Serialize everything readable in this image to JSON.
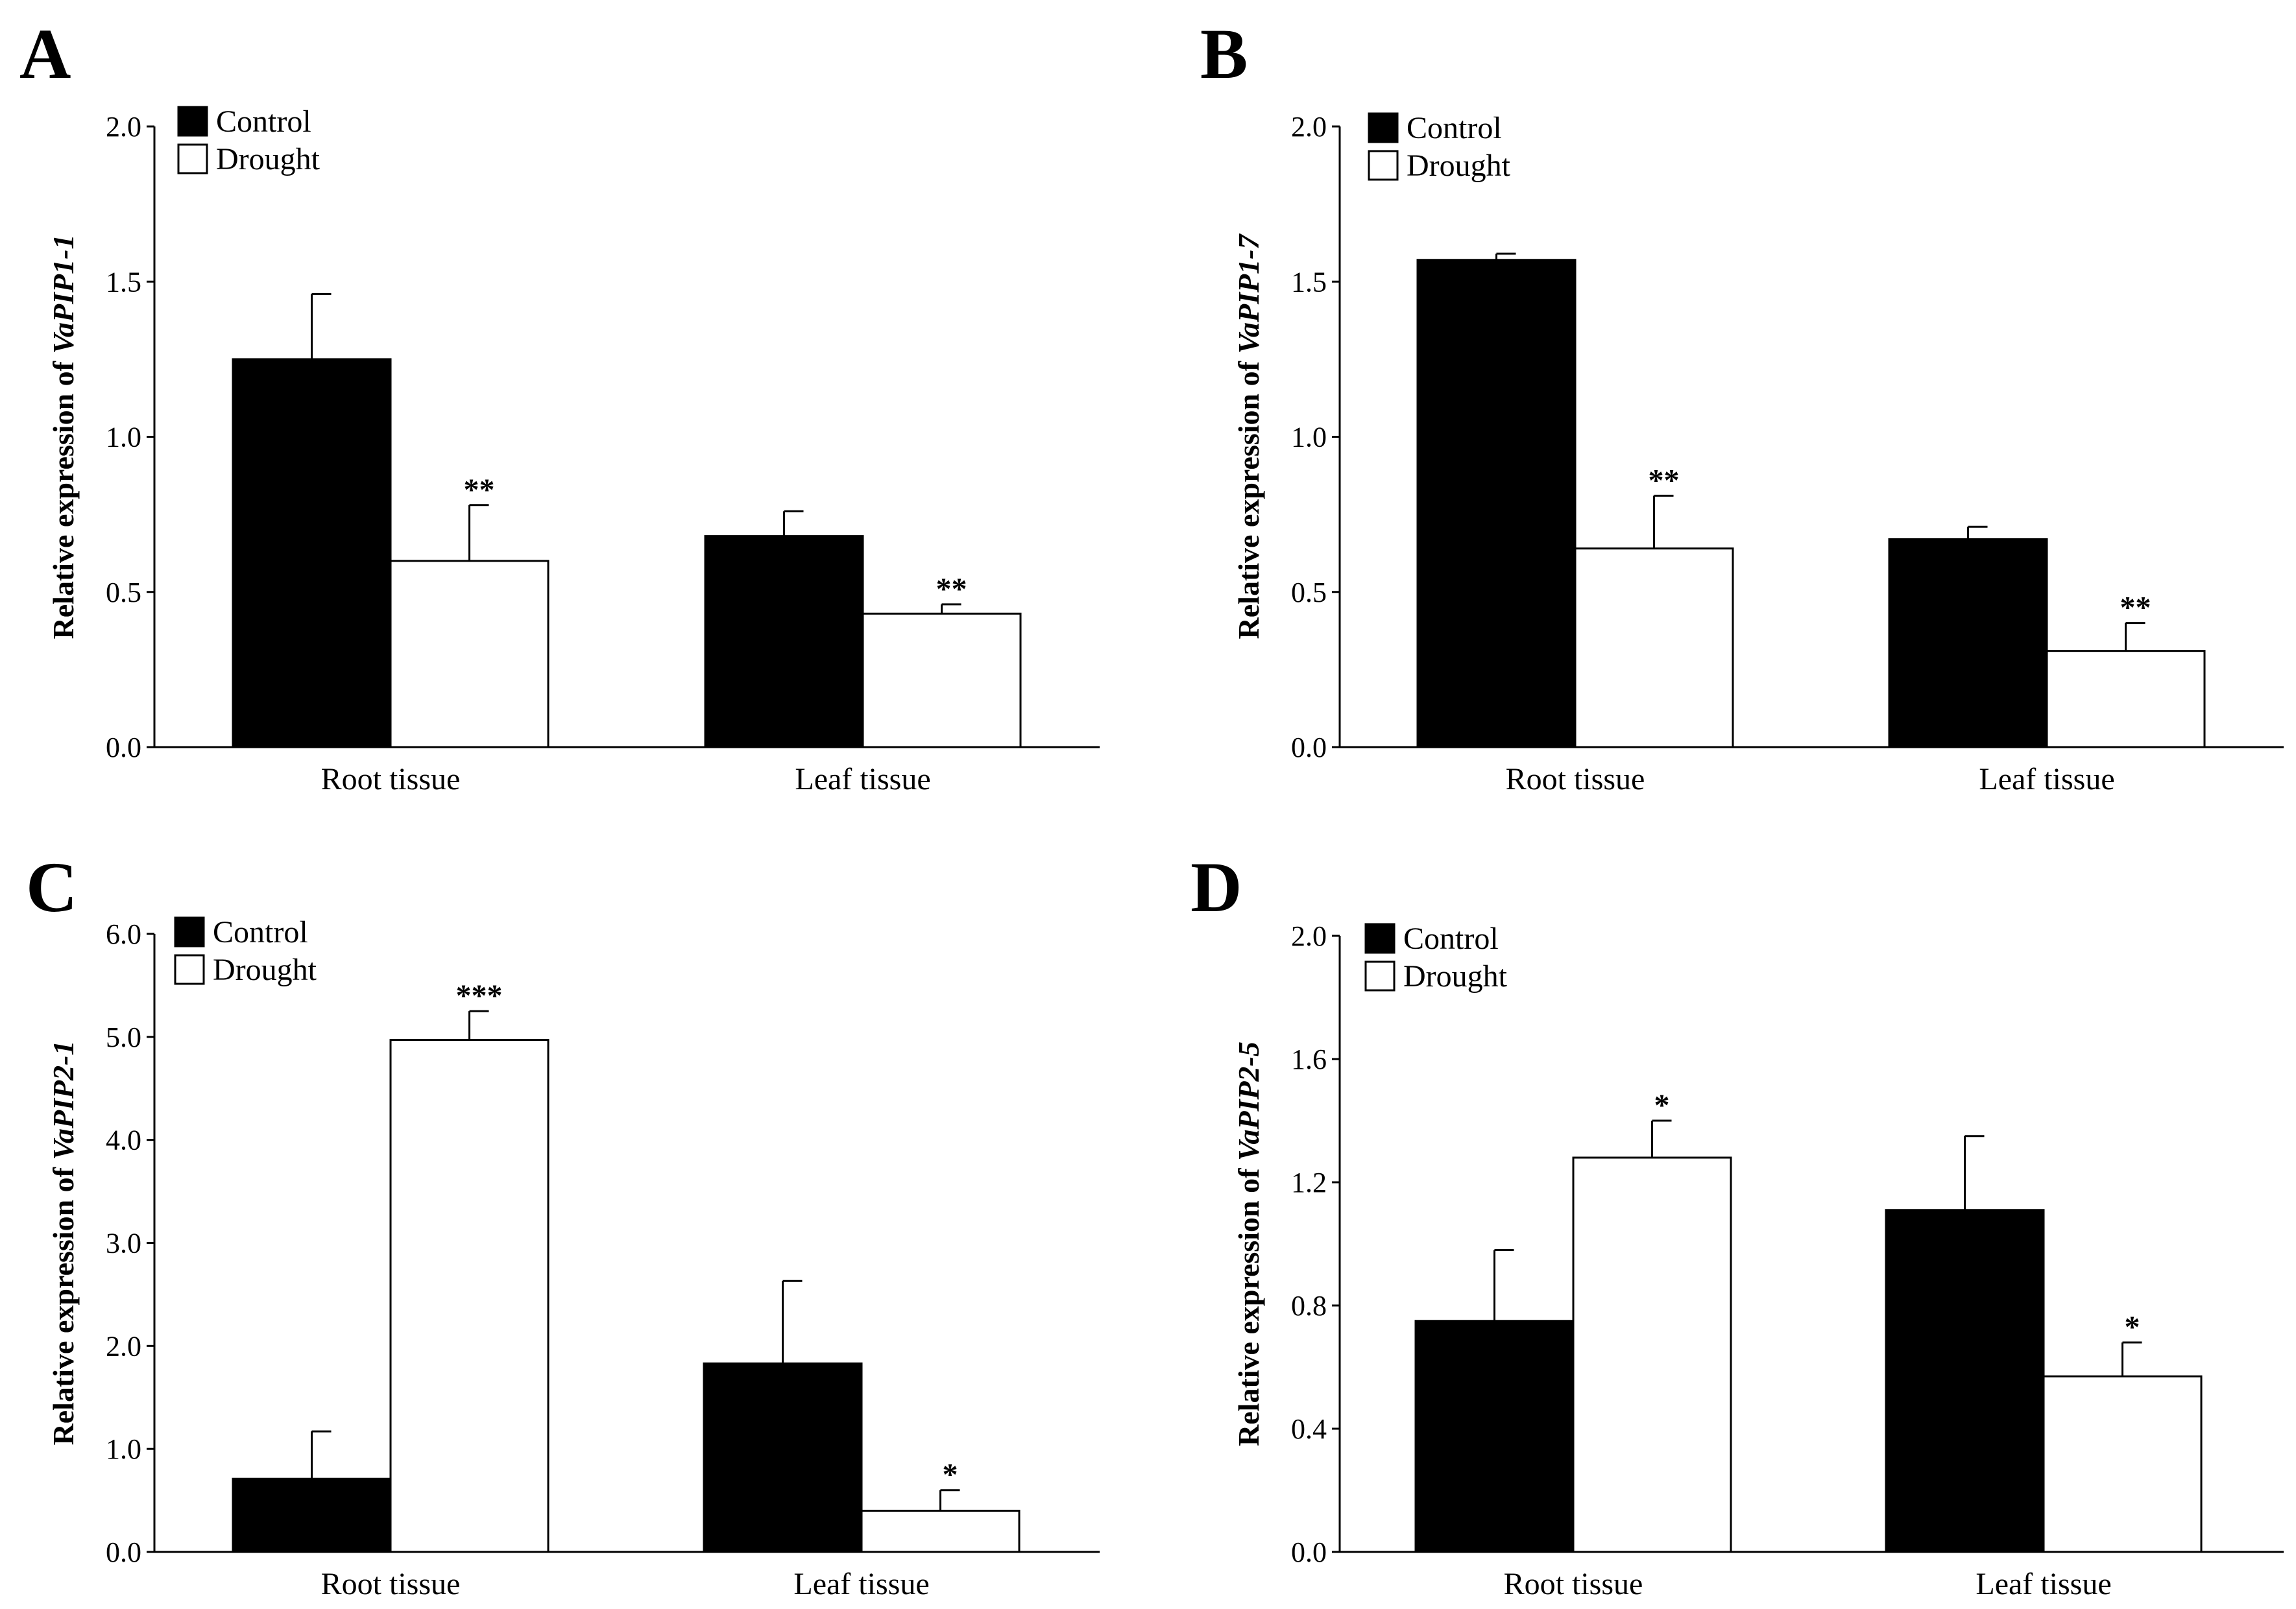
{
  "chart_data": [
    {
      "type": "bar",
      "panel": "A",
      "gene": "VaPIP1-1",
      "ylabel_prefix": "Relative expression of ",
      "categories": [
        "Root tissue",
        "Leaf tissue"
      ],
      "series": [
        {
          "name": "Control",
          "values": [
            1.25,
            0.68
          ],
          "errors": [
            0.21,
            0.08
          ],
          "sig": [
            "",
            ""
          ]
        },
        {
          "name": "Drought",
          "values": [
            0.6,
            0.43
          ],
          "errors": [
            0.18,
            0.03
          ],
          "sig": [
            "**",
            "**"
          ]
        }
      ],
      "ylim": [
        0,
        2.0
      ],
      "yticks": [
        "0.0",
        "0.5",
        "1.0",
        "1.5",
        "2.0"
      ],
      "ytick_values": [
        0,
        0.5,
        1.0,
        1.5,
        2.0
      ]
    },
    {
      "type": "bar",
      "panel": "B",
      "gene": "VaPIP1-7",
      "ylabel_prefix": "Relative expression of ",
      "categories": [
        "Root tissue",
        "Leaf tissue"
      ],
      "series": [
        {
          "name": "Control",
          "values": [
            1.57,
            0.67
          ],
          "errors": [
            0.02,
            0.04
          ],
          "sig": [
            "",
            ""
          ]
        },
        {
          "name": "Drought",
          "values": [
            0.64,
            0.31
          ],
          "errors": [
            0.17,
            0.09
          ],
          "sig": [
            "**",
            "**"
          ]
        }
      ],
      "ylim": [
        0,
        2.0
      ],
      "yticks": [
        "0.0",
        "0.5",
        "1.0",
        "1.5",
        "2.0"
      ],
      "ytick_values": [
        0,
        0.5,
        1.0,
        1.5,
        2.0
      ]
    },
    {
      "type": "bar",
      "panel": "C",
      "gene": "VaPIP2-1",
      "ylabel_prefix": "Relative expression of ",
      "categories": [
        "Root tissue",
        "Leaf tissue"
      ],
      "series": [
        {
          "name": "Control",
          "values": [
            0.71,
            1.83
          ],
          "errors": [
            0.46,
            0.8
          ],
          "sig": [
            "",
            ""
          ]
        },
        {
          "name": "Drought",
          "values": [
            4.97,
            0.4
          ],
          "errors": [
            0.28,
            0.2
          ],
          "sig": [
            "***",
            "*"
          ]
        }
      ],
      "ylim": [
        0,
        6.0
      ],
      "yticks": [
        "0.0",
        "1.0",
        "2.0",
        "3.0",
        "4.0",
        "5.0",
        "6.0"
      ],
      "ytick_values": [
        0,
        1.0,
        2.0,
        3.0,
        4.0,
        5.0,
        6.0
      ]
    },
    {
      "type": "bar",
      "panel": "D",
      "gene": "VaPIP2-5",
      "ylabel_prefix": "Relative expression of ",
      "categories": [
        "Root tissue",
        "Leaf tissue"
      ],
      "series": [
        {
          "name": "Control",
          "values": [
            0.75,
            1.11
          ],
          "errors": [
            0.23,
            0.24
          ],
          "sig": [
            "",
            ""
          ]
        },
        {
          "name": "Drought",
          "values": [
            1.28,
            0.57
          ],
          "errors": [
            0.12,
            0.11
          ],
          "sig": [
            "*",
            "*"
          ]
        }
      ],
      "ylim": [
        0,
        2.0
      ],
      "yticks": [
        "0.0",
        "0.4",
        "0.8",
        "1.2",
        "1.6",
        "2.0"
      ],
      "ytick_values": [
        0,
        0.4,
        0.8,
        1.2,
        1.6,
        2.0
      ]
    }
  ],
  "colors": {
    "control": "#000000",
    "drought": "#ffffff",
    "axis": "#000000"
  }
}
